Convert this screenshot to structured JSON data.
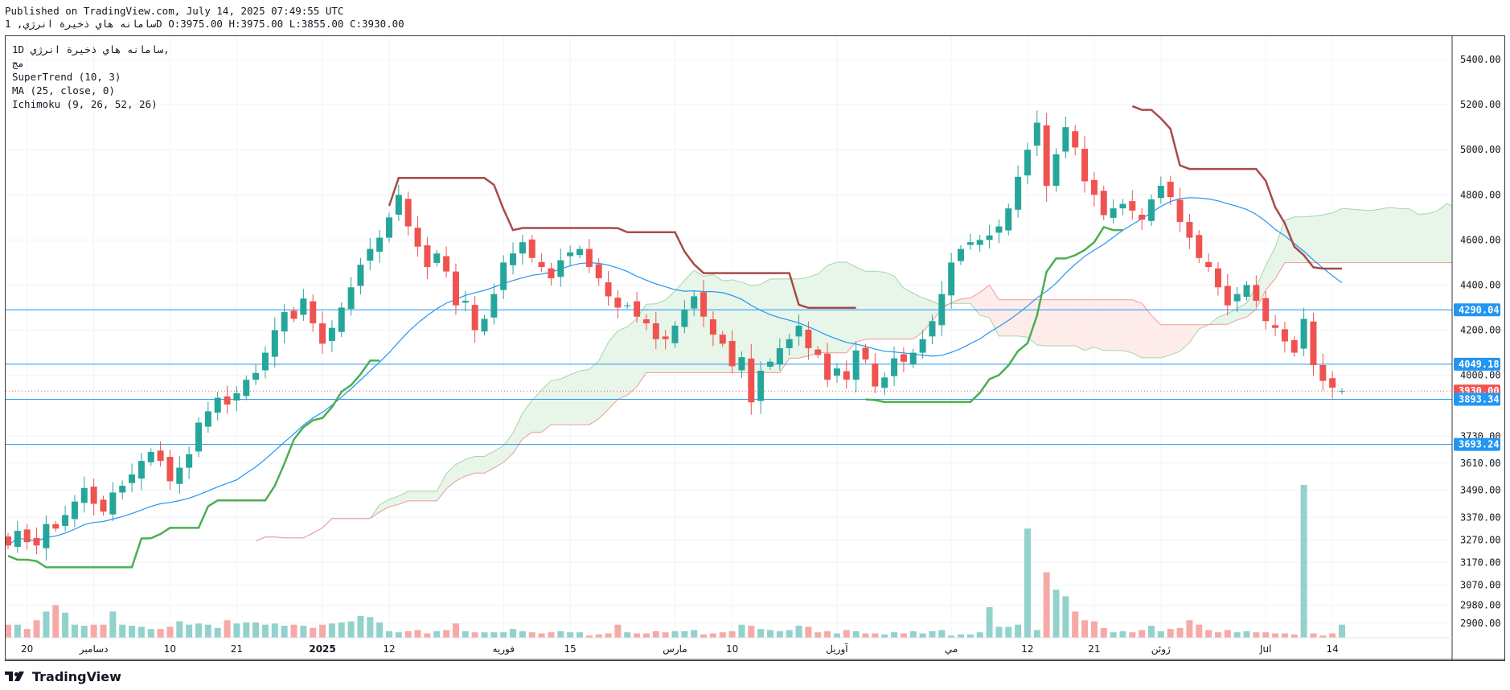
{
  "header": {
    "published": "Published on TradingView.com, July 14, 2025 07:49:55 UTC",
    "ohlc": "سامانه هاي ذخيرة انرژي, 1D O:3975.00 H:3975.00 L:3855.00 C:3930.00"
  },
  "legend": {
    "symbol": "1D  سامانه هاي ذخيرة انرژي,",
    "exchange": "مج",
    "supertrend": "SuperTrend (10, 3)",
    "ma": "MA (25, close, 0)",
    "ichimoku": "Ichimoku (9, 26, 52, 26)"
  },
  "brand": {
    "name": "TradingView",
    "logo_icon": "tradingview-logo-icon"
  },
  "colors": {
    "up": "#26a69a",
    "down": "#ef5350",
    "up_vol": "#92d2cc",
    "down_vol": "#f7a9a7",
    "supertrend_up": "#4caf50",
    "supertrend_down": "#a84a4a",
    "ma": "#2196f3",
    "cloud_bull": "#e8f5e9",
    "cloud_bear": "#fdecea",
    "hline": "#2196f3",
    "axis_text": "#131722"
  },
  "chart_data": {
    "type": "candlestick",
    "y_axis": {
      "min": 2836,
      "max": 5475,
      "ticks": [
        "5400.00",
        "5200.00",
        "5000.00",
        "4800.00",
        "4600.00",
        "4400.00",
        "4200.00",
        "4000.00",
        "3730.00",
        "3610.00",
        "3490.00",
        "3370.00",
        "3270.00",
        "3170.00",
        "3070.00",
        "2980.00",
        "2900.00"
      ]
    },
    "x_axis": {
      "labels": [
        {
          "i": 2,
          "text": "20"
        },
        {
          "i": 9,
          "text": "دسامبر"
        },
        {
          "i": 17,
          "text": "10"
        },
        {
          "i": 24,
          "text": "21"
        },
        {
          "i": 33,
          "text": "2025"
        },
        {
          "i": 40,
          "text": "12"
        },
        {
          "i": 52,
          "text": "فوريه"
        },
        {
          "i": 59,
          "text": "15"
        },
        {
          "i": 70,
          "text": "مارس"
        },
        {
          "i": 76,
          "text": "10"
        },
        {
          "i": 87,
          "text": "آوريل"
        },
        {
          "i": 99,
          "text": "مي"
        },
        {
          "i": 107,
          "text": "12"
        },
        {
          "i": 114,
          "text": "21"
        },
        {
          "i": 121,
          "text": "ژوئن"
        },
        {
          "i": 132,
          "text": "Jul"
        },
        {
          "i": 139,
          "text": "14"
        }
      ]
    },
    "price_labels": [
      {
        "value": 4290.04,
        "text": "4290.04",
        "color": "#2196f3"
      },
      {
        "value": 4049.18,
        "text": "4049.18",
        "color": "#2196f3"
      },
      {
        "value": 3930.0,
        "text": "3930.00",
        "color": "#ef5350"
      },
      {
        "value": 3893.34,
        "text": "3893.34",
        "color": "#2196f3"
      },
      {
        "value": 3693.24,
        "text": "3693.24",
        "color": "#2196f3"
      }
    ],
    "last_close": 3930.0,
    "close": [
      3245,
      3310,
      3260,
      3245,
      3340,
      3320,
      3380,
      3440,
      3500,
      3430,
      3395,
      3480,
      3510,
      3560,
      3620,
      3660,
      3620,
      3530,
      3590,
      3650,
      3790,
      3840,
      3900,
      3870,
      3920,
      3980,
      4010,
      4100,
      4200,
      4280,
      4250,
      4340,
      4230,
      4140,
      4210,
      4300,
      4390,
      4490,
      4560,
      4610,
      4700,
      4800,
      4660,
      4570,
      4480,
      4540,
      4460,
      4310,
      4330,
      4200,
      4250,
      4360,
      4500,
      4540,
      4590,
      4520,
      4480,
      4430,
      4510,
      4545,
      4560,
      4480,
      4430,
      4350,
      4300,
      4310,
      4260,
      4230,
      4160,
      4160,
      4220,
      4290,
      4350,
      4260,
      4180,
      4140,
      4040,
      4080,
      3880,
      4020,
      4060,
      4120,
      4160,
      4220,
      4120,
      4090,
      3980,
      4030,
      3980,
      4110,
      4070,
      3950,
      3990,
      4075,
      4060,
      4100,
      4160,
      4240,
      4360,
      4500,
      4560,
      4590,
      4600,
      4620,
      4660,
      4740,
      4880,
      5000,
      5120,
      4840,
      4980,
      5100,
      5010,
      4860,
      4800,
      4710,
      4740,
      4760,
      4730,
      4690,
      4780,
      4840,
      4790,
      4680,
      4610,
      4520,
      4480,
      4390,
      4310,
      4360,
      4400,
      4330,
      4240,
      4210,
      4150,
      4100,
      4250,
      4045,
      3975,
      3945,
      3930
    ],
    "volume": [
      60,
      60,
      40,
      80,
      120,
      150,
      115,
      60,
      55,
      60,
      60,
      120,
      60,
      55,
      50,
      40,
      40,
      50,
      75,
      60,
      65,
      60,
      45,
      80,
      65,
      70,
      70,
      60,
      65,
      55,
      60,
      55,
      45,
      60,
      65,
      70,
      75,
      100,
      95,
      70,
      30,
      25,
      30,
      35,
      20,
      30,
      35,
      65,
      30,
      25,
      25,
      25,
      25,
      40,
      30,
      25,
      20,
      25,
      30,
      25,
      25,
      10,
      15,
      20,
      60,
      25,
      20,
      20,
      30,
      25,
      30,
      30,
      35,
      15,
      20,
      25,
      30,
      60,
      55,
      40,
      35,
      30,
      35,
      55,
      50,
      25,
      30,
      20,
      35,
      30,
      20,
      20,
      15,
      25,
      20,
      30,
      20,
      30,
      35,
      10,
      15,
      15,
      25,
      140,
      50,
      50,
      60,
      500,
      35,
      300,
      220,
      190,
      120,
      80,
      75,
      45,
      25,
      30,
      25,
      35,
      55,
      30,
      40,
      45,
      80,
      60,
      35,
      25,
      35,
      25,
      30,
      25,
      25,
      20,
      20,
      15,
      700,
      20,
      10,
      20,
      60
    ],
    "supertrend": {
      "up_start": 0,
      "down_start": 40,
      "up_again_start": 90,
      "down_again_start": 118
    },
    "ma_period": 25,
    "hlines": [
      4290.04,
      4049.18,
      3893.34,
      3693.24
    ]
  }
}
